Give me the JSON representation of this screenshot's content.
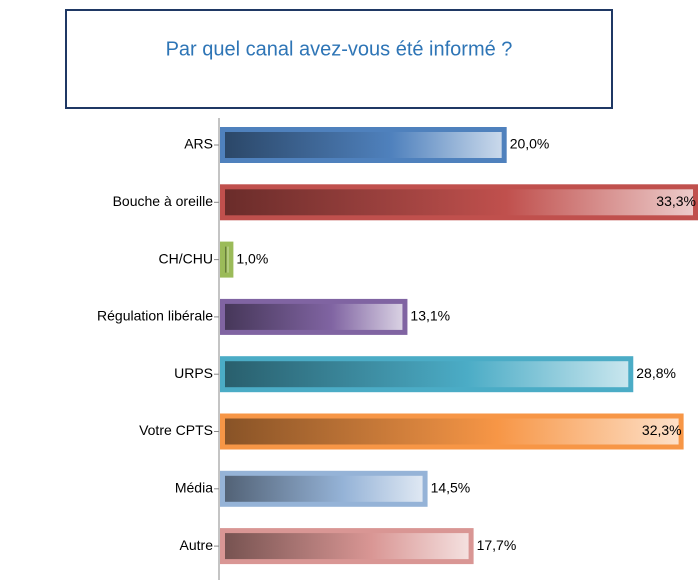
{
  "chart_data": {
    "type": "bar",
    "orientation": "horizontal",
    "title": "Par quel canal avez-vous été informé ?",
    "categories": [
      "ARS",
      "Bouche à oreille",
      "CH/CHU",
      "Régulation libérale",
      "URPS",
      "Votre CPTS",
      "Média",
      "Autre"
    ],
    "values": [
      20.0,
      33.3,
      1.0,
      13.1,
      28.8,
      32.3,
      14.5,
      17.7
    ],
    "value_labels": [
      "20,0%",
      "33,3%",
      "1,0%",
      "13,1%",
      "28,8%",
      "32,3%",
      "14,5%",
      "17,7%"
    ],
    "colors": [
      "#4f81bd",
      "#c0504d",
      "#9bbb59",
      "#8064a2",
      "#4bacc6",
      "#f79646",
      "#95b3d7",
      "#d99694"
    ]
  }
}
